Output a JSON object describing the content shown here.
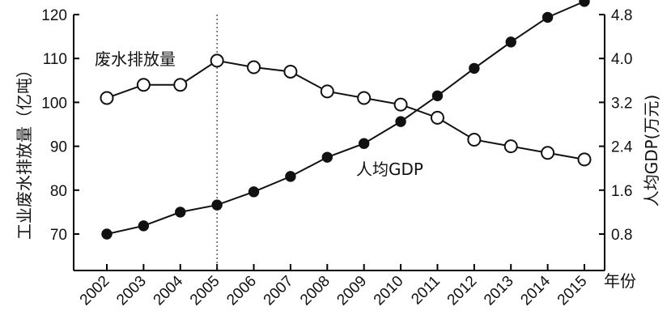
{
  "chart_data": {
    "type": "line",
    "x": [
      2002,
      2003,
      2004,
      2005,
      2006,
      2007,
      2008,
      2009,
      2010,
      2011,
      2012,
      2013,
      2014,
      2015
    ],
    "xlabel": "年份",
    "x_tick_labels": [
      "2002",
      "2003",
      "2004",
      "2005",
      "2006",
      "2007",
      "2008",
      "2009",
      "2010",
      "2011",
      "2012",
      "2013",
      "2014",
      "2015"
    ],
    "y_left": {
      "label": "工业废水排放量（亿吨）",
      "lim": [
        70,
        120
      ],
      "ticks": [
        70,
        80,
        90,
        100,
        110,
        120
      ]
    },
    "y_right": {
      "label": "人均GDP(万元)",
      "lim": [
        0.8,
        4.8
      ],
      "ticks": [
        "0.8",
        "1.6",
        "2.4",
        "3.2",
        "4.0",
        "4.8"
      ]
    },
    "series": [
      {
        "name": "废水排放量",
        "axis": "left",
        "marker": "open-circle",
        "values": [
          101,
          104,
          104,
          109.5,
          108,
          107,
          102.5,
          101,
          99.5,
          96.5,
          91.5,
          90,
          88.5,
          87
        ]
      },
      {
        "name": "人均GDP",
        "axis": "right",
        "marker": "filled-circle",
        "values": [
          0.8,
          0.95,
          1.2,
          1.33,
          1.57,
          1.85,
          2.2,
          2.45,
          2.85,
          3.32,
          3.82,
          4.3,
          4.75,
          5.04
        ]
      }
    ],
    "reference_line": {
      "x": 2005,
      "style": "dotted"
    },
    "grid": false
  },
  "colors": {
    "line": "#111111",
    "open_marker_fill": "#ffffff"
  }
}
